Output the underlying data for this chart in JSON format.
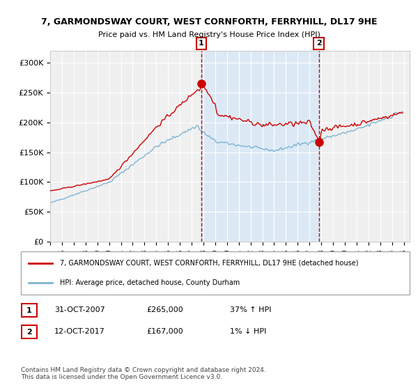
{
  "title": "7, GARMONDSWAY COURT, WEST CORNFORTH, FERRYHILL, DL17 9HE",
  "subtitle": "Price paid vs. HM Land Registry's House Price Index (HPI)",
  "legend_red": "7, GARMONDSWAY COURT, WEST CORNFORTH, FERRYHILL, DL17 9HE (detached house)",
  "legend_blue": "HPI: Average price, detached house, County Durham",
  "annotation1_date": "31-OCT-2007",
  "annotation1_price": "£265,000",
  "annotation1_hpi": "37% ↑ HPI",
  "annotation2_date": "12-OCT-2017",
  "annotation2_price": "£167,000",
  "annotation2_hpi": "1% ↓ HPI",
  "footer": "Contains HM Land Registry data © Crown copyright and database right 2024.\nThis data is licensed under the Open Government Licence v3.0.",
  "ylim": [
    0,
    320000
  ],
  "sale1_year": 2007.83,
  "sale1_price": 265000,
  "sale2_year": 2017.79,
  "sale2_price": 167000,
  "background_color": "#ffffff",
  "plot_bg_color": "#f0f0f0",
  "shaded_region_color": "#dce9f5",
  "red_color": "#cc0000",
  "blue_color": "#7fb3d3",
  "grid_color": "#ffffff",
  "vline_color": "#cc0000"
}
